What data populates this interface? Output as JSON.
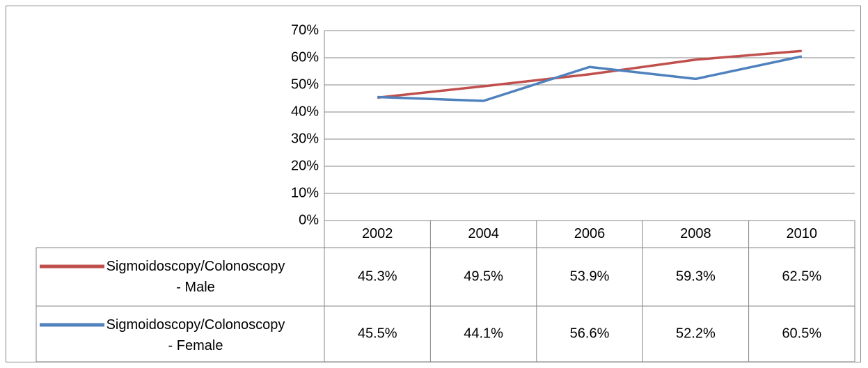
{
  "chart_data": {
    "type": "line",
    "categories": [
      "2002",
      "2004",
      "2006",
      "2008",
      "2010"
    ],
    "series": [
      {
        "name": "Sigmoidoscopy/Colonoscopy - Male",
        "color": "#c0504d",
        "values": [
          45.3,
          49.5,
          53.9,
          59.3,
          62.5
        ],
        "value_labels": [
          "45.3%",
          "49.5%",
          "53.9%",
          "59.3%",
          "62.5%"
        ]
      },
      {
        "name": "Sigmoidoscopy/Colonoscopy - Female",
        "color": "#4f81bd",
        "values": [
          45.5,
          44.1,
          56.6,
          52.2,
          60.5
        ],
        "value_labels": [
          "45.5%",
          "44.1%",
          "56.6%",
          "52.2%",
          "60.5%"
        ]
      }
    ],
    "ylim": [
      0,
      70
    ],
    "yticks": [
      {
        "value": 0,
        "label": "0%"
      },
      {
        "value": 10,
        "label": "10%"
      },
      {
        "value": 20,
        "label": "20%"
      },
      {
        "value": 30,
        "label": "30%"
      },
      {
        "value": 40,
        "label": "40%"
      },
      {
        "value": 50,
        "label": "50%"
      },
      {
        "value": 60,
        "label": "60%"
      },
      {
        "value": 70,
        "label": "70%"
      }
    ],
    "grid": true
  }
}
